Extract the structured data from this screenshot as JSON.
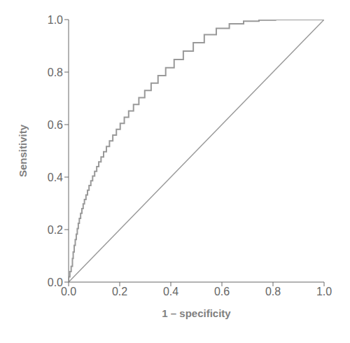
{
  "chart_data": {
    "type": "line",
    "xlabel": "1 – specificity",
    "ylabel": "Sensitivity",
    "xlim": [
      0.0,
      1.0
    ],
    "ylim": [
      0.0,
      1.0
    ],
    "xticks": [
      {
        "value": 0.0,
        "label": "0.0"
      },
      0.2,
      0.4,
      0.6,
      0.8,
      {
        "value": 1.0,
        "label": "1.0"
      }
    ],
    "yticks": [
      {
        "value": 0.0,
        "label": "0.0"
      },
      0.2,
      0.4,
      0.6,
      0.8,
      {
        "value": 1.0,
        "label": "1.0"
      }
    ],
    "grid": false,
    "series": [
      {
        "color": "#999999",
        "x": [
          0.0,
          1.0
        ],
        "values": [
          0.0,
          1.0
        ]
      },
      {
        "color": "#999999",
        "x": [
          0.0,
          0.0,
          0.005,
          0.005,
          0.01,
          0.01,
          0.015,
          0.015,
          0.018,
          0.018,
          0.022,
          0.022,
          0.026,
          0.026,
          0.03,
          0.03,
          0.034,
          0.034,
          0.038,
          0.038,
          0.042,
          0.042,
          0.047,
          0.047,
          0.052,
          0.052,
          0.057,
          0.057,
          0.062,
          0.062,
          0.068,
          0.068,
          0.074,
          0.074,
          0.08,
          0.08,
          0.087,
          0.087,
          0.094,
          0.094,
          0.102,
          0.102,
          0.11,
          0.11,
          0.118,
          0.118,
          0.127,
          0.127,
          0.137,
          0.137,
          0.148,
          0.148,
          0.16,
          0.16,
          0.173,
          0.173,
          0.187,
          0.187,
          0.202,
          0.202,
          0.218,
          0.218,
          0.235,
          0.235,
          0.254,
          0.254,
          0.275,
          0.275,
          0.298,
          0.298,
          0.323,
          0.323,
          0.35,
          0.35,
          0.38,
          0.38,
          0.413,
          0.413,
          0.449,
          0.449,
          0.488,
          0.488,
          0.531,
          0.531,
          0.578,
          0.578,
          0.629,
          0.629,
          0.685,
          0.685,
          0.745,
          0.745,
          0.81,
          0.81,
          0.88,
          0.88,
          0.95,
          0.95,
          1.0
        ],
        "values": [
          0.0,
          0.02,
          0.02,
          0.04,
          0.04,
          0.06,
          0.06,
          0.09,
          0.09,
          0.115,
          0.115,
          0.14,
          0.14,
          0.162,
          0.162,
          0.183,
          0.183,
          0.204,
          0.204,
          0.224,
          0.224,
          0.243,
          0.243,
          0.262,
          0.262,
          0.28,
          0.28,
          0.298,
          0.298,
          0.315,
          0.315,
          0.332,
          0.332,
          0.35,
          0.35,
          0.368,
          0.368,
          0.386,
          0.386,
          0.404,
          0.404,
          0.422,
          0.422,
          0.44,
          0.44,
          0.458,
          0.458,
          0.477,
          0.477,
          0.497,
          0.497,
          0.517,
          0.517,
          0.538,
          0.538,
          0.56,
          0.56,
          0.582,
          0.582,
          0.605,
          0.605,
          0.628,
          0.628,
          0.652,
          0.652,
          0.677,
          0.677,
          0.703,
          0.703,
          0.73,
          0.73,
          0.758,
          0.758,
          0.787,
          0.787,
          0.817,
          0.817,
          0.848,
          0.848,
          0.88,
          0.88,
          0.912,
          0.912,
          0.943,
          0.943,
          0.967,
          0.967,
          0.984,
          0.984,
          0.994,
          0.994,
          0.998,
          0.998,
          1.0,
          1.0,
          1.0,
          1.0,
          1.0,
          1.0
        ]
      }
    ]
  }
}
